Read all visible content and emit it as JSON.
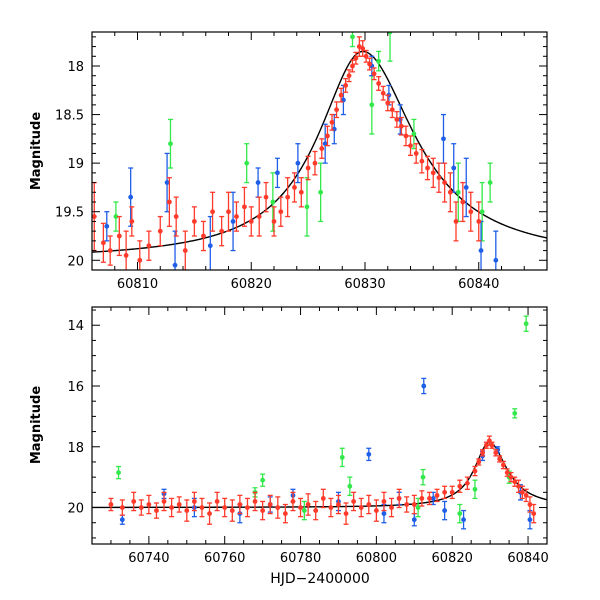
{
  "chart_data": [
    {
      "type": "scatter",
      "panel": "top",
      "title": "",
      "xlabel": "",
      "ylabel": "Magnitude",
      "xlim": [
        60806,
        60846
      ],
      "ylim": [
        20.1,
        17.65
      ],
      "y_inverted": true,
      "grid": false,
      "legend": "none",
      "x_ticks": [
        60810,
        60820,
        60830,
        60840
      ],
      "y_ticks": [
        18,
        18.5,
        19,
        19.5,
        20
      ],
      "x_tick_labels": [
        "60810",
        "60820",
        "60830",
        "60840"
      ],
      "y_tick_labels": [
        "18",
        "18.5",
        "19",
        "19.5",
        "20"
      ],
      "series": [
        {
          "color": "#ff3a2a",
          "points": [
            [
              60806.2,
              19.55,
              0.35
            ],
            [
              60807.0,
              19.82,
              0.2
            ],
            [
              60807.6,
              19.9,
              0.15
            ],
            [
              60808.4,
              19.75,
              0.2
            ],
            [
              60809.0,
              19.95,
              0.25
            ],
            [
              60809.5,
              19.6,
              0.15
            ],
            [
              60810.2,
              20.0,
              0.2
            ],
            [
              60811.0,
              19.85,
              0.15
            ],
            [
              60812.0,
              19.7,
              0.15
            ],
            [
              60812.8,
              19.4,
              0.25
            ],
            [
              60813.4,
              19.55,
              0.2
            ],
            [
              60814.2,
              19.9,
              0.2
            ],
            [
              60815.0,
              19.6,
              0.15
            ],
            [
              60815.8,
              19.75,
              0.15
            ],
            [
              60816.6,
              19.5,
              0.2
            ],
            [
              60817.4,
              19.7,
              0.15
            ],
            [
              60818.0,
              19.5,
              0.2
            ],
            [
              60818.7,
              19.55,
              0.15
            ],
            [
              60819.4,
              19.45,
              0.2
            ],
            [
              60820.0,
              19.6,
              0.15
            ],
            [
              60820.7,
              19.55,
              0.2
            ],
            [
              60821.3,
              19.35,
              0.15
            ],
            [
              60822.0,
              19.6,
              0.15
            ],
            [
              60822.6,
              19.5,
              0.15
            ],
            [
              60823.2,
              19.35,
              0.2
            ],
            [
              60823.8,
              19.25,
              0.15
            ],
            [
              60824.4,
              19.3,
              0.15
            ],
            [
              60825.0,
              19.05,
              0.12
            ],
            [
              60825.6,
              19.0,
              0.12
            ],
            [
              60826.2,
              18.85,
              0.1
            ],
            [
              60826.7,
              18.72,
              0.1
            ],
            [
              60827.1,
              18.58,
              0.08
            ],
            [
              60827.5,
              18.45,
              0.08
            ],
            [
              60827.9,
              18.3,
              0.07
            ],
            [
              60828.3,
              18.2,
              0.07
            ],
            [
              60828.6,
              18.1,
              0.06
            ],
            [
              60828.9,
              18.0,
              0.06
            ],
            [
              60829.2,
              17.92,
              0.06
            ],
            [
              60829.5,
              17.8,
              0.1
            ],
            [
              60829.8,
              17.82,
              0.08
            ],
            [
              60830.1,
              17.9,
              0.06
            ],
            [
              60830.4,
              17.98,
              0.06
            ],
            [
              60830.8,
              18.08,
              0.06
            ],
            [
              60831.2,
              18.18,
              0.07
            ],
            [
              60831.6,
              18.28,
              0.07
            ],
            [
              60832.0,
              18.38,
              0.08
            ],
            [
              60832.4,
              18.45,
              0.08
            ],
            [
              60832.8,
              18.55,
              0.08
            ],
            [
              60833.2,
              18.62,
              0.09
            ],
            [
              60833.6,
              18.72,
              0.1
            ],
            [
              60834.0,
              18.82,
              0.1
            ],
            [
              60834.5,
              18.9,
              0.1
            ],
            [
              60835.0,
              18.98,
              0.12
            ],
            [
              60835.5,
              19.05,
              0.12
            ],
            [
              60836.0,
              19.1,
              0.15
            ],
            [
              60836.5,
              19.15,
              0.15
            ],
            [
              60837.0,
              19.2,
              0.2
            ],
            [
              60837.5,
              19.3,
              0.2
            ],
            [
              60838.0,
              19.6,
              0.2
            ],
            [
              60838.6,
              19.4,
              0.2
            ],
            [
              60839.3,
              19.5,
              0.2
            ],
            [
              60840.0,
              19.6,
              0.2
            ]
          ]
        },
        {
          "color": "#1f5fe8",
          "points": [
            [
              60807.3,
              19.65,
              0.15
            ],
            [
              60809.4,
              19.35,
              0.3
            ],
            [
              60812.6,
              19.2,
              0.3
            ],
            [
              60813.3,
              20.05,
              0.35
            ],
            [
              60816.4,
              19.85,
              0.3
            ],
            [
              60818.4,
              19.6,
              0.3
            ],
            [
              60820.6,
              19.2,
              0.15
            ],
            [
              60822.3,
              19.1,
              0.15
            ],
            [
              60824.1,
              19.0,
              0.2
            ],
            [
              60826.5,
              18.8,
              0.2
            ],
            [
              60827.3,
              18.65,
              0.15
            ],
            [
              60828.1,
              18.35,
              0.15
            ],
            [
              60830.6,
              18.0,
              0.1
            ],
            [
              60832.1,
              18.3,
              0.1
            ],
            [
              60833.1,
              18.55,
              0.15
            ],
            [
              60836.9,
              18.75,
              0.25
            ],
            [
              60837.8,
              19.05,
              0.25
            ],
            [
              60838.9,
              19.25,
              0.3
            ],
            [
              60840.2,
              19.9,
              0.3
            ],
            [
              60841.5,
              20.0,
              0.3
            ]
          ]
        },
        {
          "color": "#33e84a",
          "points": [
            [
              60808.1,
              19.55,
              0.15
            ],
            [
              60812.9,
              18.8,
              0.25
            ],
            [
              60819.6,
              19.0,
              0.2
            ],
            [
              60821.9,
              19.4,
              0.3
            ],
            [
              60824.9,
              19.45,
              0.3
            ],
            [
              60826.1,
              19.3,
              0.3
            ],
            [
              60828.9,
              17.7,
              0.1
            ],
            [
              60830.6,
              18.4,
              0.3
            ],
            [
              60831.2,
              17.95,
              0.1
            ],
            [
              60832.2,
              17.65,
              0.3
            ],
            [
              60834.3,
              18.7,
              0.15
            ],
            [
              60838.2,
              19.3,
              0.3
            ],
            [
              60840.3,
              19.5,
              0.3
            ],
            [
              60841.0,
              19.2,
              0.2
            ]
          ]
        }
      ]
    },
    {
      "type": "scatter",
      "panel": "bottom",
      "title": "",
      "xlabel": "HJD−2400000",
      "ylabel": "Magnitude",
      "xlim": [
        60725,
        60845
      ],
      "ylim": [
        21.2,
        13.4
      ],
      "y_inverted": true,
      "grid": false,
      "legend": "none",
      "x_ticks": [
        60740,
        60760,
        60780,
        60800,
        60820,
        60840
      ],
      "y_ticks": [
        14,
        16,
        18,
        20
      ],
      "x_tick_labels": [
        "60740",
        "60760",
        "60780",
        "60800",
        "60820",
        "60840"
      ],
      "y_tick_labels": [
        "14",
        "16",
        "18",
        "20"
      ],
      "series": [
        {
          "color": "#ff3a2a",
          "points": [
            [
              60730,
              19.9,
              0.2
            ],
            [
              60733,
              20.0,
              0.25
            ],
            [
              60736,
              19.8,
              0.3
            ],
            [
              60738,
              20.0,
              0.25
            ],
            [
              60740,
              19.9,
              0.3
            ],
            [
              60742,
              20.1,
              0.25
            ],
            [
              60744,
              19.8,
              0.3
            ],
            [
              60746,
              20.0,
              0.3
            ],
            [
              60748,
              19.9,
              0.25
            ],
            [
              60750,
              20.1,
              0.35
            ],
            [
              60752,
              19.8,
              0.3
            ],
            [
              60754,
              20.0,
              0.3
            ],
            [
              60756,
              20.2,
              0.35
            ],
            [
              60758,
              19.8,
              0.3
            ],
            [
              60760,
              20.0,
              0.3
            ],
            [
              60762,
              20.1,
              0.35
            ],
            [
              60764,
              19.9,
              0.3
            ],
            [
              60766,
              20.0,
              0.3
            ],
            [
              60768,
              19.8,
              0.3
            ],
            [
              60770,
              20.1,
              0.3
            ],
            [
              60772,
              19.9,
              0.3
            ],
            [
              60774,
              20.0,
              0.35
            ],
            [
              60776,
              20.2,
              0.3
            ],
            [
              60778,
              19.8,
              0.3
            ],
            [
              60780,
              20.0,
              0.3
            ],
            [
              60782,
              19.9,
              0.35
            ],
            [
              60784,
              20.1,
              0.3
            ],
            [
              60786,
              19.7,
              0.3
            ],
            [
              60788,
              20.0,
              0.3
            ],
            [
              60790,
              19.9,
              0.3
            ],
            [
              60792,
              20.2,
              0.35
            ],
            [
              60794,
              19.8,
              0.3
            ],
            [
              60796,
              20.0,
              0.3
            ],
            [
              60798,
              19.9,
              0.3
            ],
            [
              60800,
              20.1,
              0.35
            ],
            [
              60802,
              19.8,
              0.3
            ],
            [
              60804,
              20.0,
              0.3
            ],
            [
              60806,
              19.7,
              0.3
            ],
            [
              60808,
              19.9,
              0.25
            ],
            [
              60810,
              19.9,
              0.3
            ],
            [
              60812,
              19.7,
              0.25
            ],
            [
              60814,
              19.7,
              0.2
            ],
            [
              60816,
              19.6,
              0.2
            ],
            [
              60818,
              19.5,
              0.2
            ],
            [
              60820,
              19.5,
              0.2
            ],
            [
              60822,
              19.3,
              0.2
            ],
            [
              60824,
              19.2,
              0.2
            ],
            [
              60826,
              18.8,
              0.15
            ],
            [
              60827,
              18.5,
              0.1
            ],
            [
              60828,
              18.2,
              0.1
            ],
            [
              60829,
              17.95,
              0.1
            ],
            [
              60829.8,
              17.8,
              0.15
            ],
            [
              60830.5,
              17.95,
              0.1
            ],
            [
              60831.5,
              18.2,
              0.1
            ],
            [
              60832.5,
              18.4,
              0.1
            ],
            [
              60833.5,
              18.6,
              0.12
            ],
            [
              60834.5,
              18.85,
              0.12
            ],
            [
              60835.5,
              19.0,
              0.15
            ],
            [
              60836.5,
              19.15,
              0.15
            ],
            [
              60837.5,
              19.3,
              0.2
            ],
            [
              60838.5,
              19.5,
              0.2
            ],
            [
              60839.5,
              19.6,
              0.2
            ],
            [
              60840.5,
              19.9,
              0.25
            ],
            [
              60841.5,
              20.2,
              0.3
            ]
          ]
        },
        {
          "color": "#1f5fe8",
          "points": [
            [
              60733,
              20.4,
              0.15
            ],
            [
              60744,
              19.55,
              0.15
            ],
            [
              60752,
              20.0,
              0.3
            ],
            [
              60764,
              20.2,
              0.3
            ],
            [
              60772,
              19.9,
              0.25
            ],
            [
              60778,
              19.6,
              0.2
            ],
            [
              60790,
              19.8,
              0.3
            ],
            [
              60798,
              18.25,
              0.2
            ],
            [
              60802,
              20.2,
              0.3
            ],
            [
              60806,
              19.7,
              0.2
            ],
            [
              60810,
              20.4,
              0.2
            ],
            [
              60812.5,
              16.0,
              0.25
            ],
            [
              60815,
              19.7,
              0.2
            ],
            [
              60818,
              20.1,
              0.3
            ],
            [
              60823,
              20.4,
              0.3
            ],
            [
              60828,
              18.3,
              0.15
            ],
            [
              60832,
              18.1,
              0.1
            ],
            [
              60838,
              19.5,
              0.25
            ],
            [
              60840.5,
              20.4,
              0.3
            ]
          ]
        },
        {
          "color": "#33e84a",
          "points": [
            [
              60732,
              18.85,
              0.2
            ],
            [
              60768,
              19.5,
              0.15
            ],
            [
              60770,
              19.1,
              0.2
            ],
            [
              60781,
              20.1,
              0.3
            ],
            [
              60791,
              18.35,
              0.3
            ],
            [
              60793,
              19.3,
              0.3
            ],
            [
              60811,
              20.0,
              0.3
            ],
            [
              60812.3,
              19.0,
              0.25
            ],
            [
              60822,
              20.2,
              0.3
            ],
            [
              60826,
              19.4,
              0.3
            ],
            [
              60835,
              19.0,
              0.2
            ],
            [
              60836.5,
              16.9,
              0.15
            ],
            [
              60839.5,
              13.95,
              0.25
            ]
          ]
        }
      ]
    }
  ],
  "fit_curve": {
    "color": "#000000",
    "peak_x": 60829.8,
    "peak_mag": 17.85,
    "base_mag": 20.0,
    "rise_width": 4.8,
    "fall_width": 5.6
  }
}
